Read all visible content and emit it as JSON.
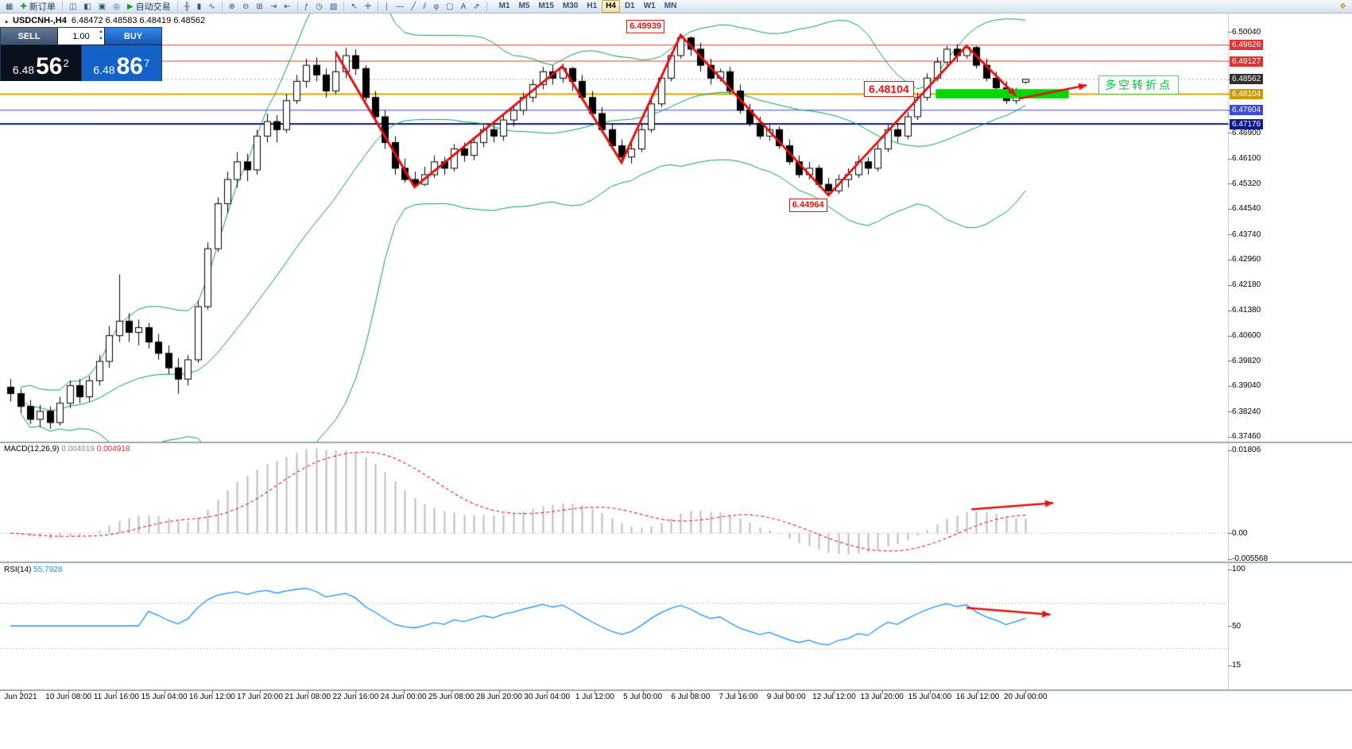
{
  "toolbar": {
    "items": [
      {
        "name": "new-chart-icon",
        "glyph": "▦"
      },
      {
        "name": "new-order-button",
        "glyph": "✚",
        "label": "新订单"
      },
      {
        "name": "sep1",
        "sep": true
      },
      {
        "name": "market-watch-icon",
        "glyph": "◫"
      },
      {
        "name": "navigator-icon",
        "glyph": "◧"
      },
      {
        "name": "terminal-icon",
        "glyph": "▣"
      },
      {
        "name": "strategy-tester-icon",
        "glyph": "◎"
      },
      {
        "name": "autotrading-button",
        "glyph": "▶",
        "label": "自动交易"
      },
      {
        "name": "sep2",
        "sep": true
      },
      {
        "name": "bar-chart-icon",
        "glyph": "╫"
      },
      {
        "name": "candlestick-chart-icon",
        "glyph": "▮"
      },
      {
        "name": "line-chart-icon",
        "glyph": "∿"
      },
      {
        "name": "sep3",
        "sep": true
      },
      {
        "name": "zoom-in-icon",
        "glyph": "⊕"
      },
      {
        "name": "zoom-out-icon",
        "glyph": "⊖"
      },
      {
        "name": "tile-windows-icon",
        "glyph": "⊞"
      },
      {
        "name": "auto-scroll-icon",
        "glyph": "⇥"
      },
      {
        "name": "chart-shift-icon",
        "glyph": "⇤"
      },
      {
        "name": "sep4",
        "sep": true
      },
      {
        "name": "indicators-icon",
        "glyph": "ƒ"
      },
      {
        "name": "periods-icon",
        "glyph": "◷"
      },
      {
        "name": "templates-icon",
        "glyph": "▧"
      },
      {
        "name": "sep5",
        "sep": true
      },
      {
        "name": "cursor-icon",
        "glyph": "↖"
      },
      {
        "name": "crosshair-icon",
        "glyph": "✛"
      },
      {
        "name": "sep6",
        "sep": true
      },
      {
        "name": "vertical-line-icon",
        "glyph": "∣"
      },
      {
        "name": "horizontal-line-icon",
        "glyph": "―"
      },
      {
        "name": "trendline-icon",
        "glyph": "╱"
      },
      {
        "name": "channel-icon",
        "glyph": "⫽"
      },
      {
        "name": "fibonacci-icon",
        "glyph": "φ"
      },
      {
        "name": "shapes-icon",
        "glyph": "▢"
      },
      {
        "name": "text-icon",
        "glyph": "A"
      },
      {
        "name": "arrows-icon",
        "glyph": "⇗"
      },
      {
        "name": "sep7",
        "sep": true
      }
    ],
    "timeframes": [
      "M1",
      "M5",
      "M15",
      "M30",
      "H1",
      "H4",
      "D1",
      "W1",
      "MN"
    ],
    "active_timeframe": "H4",
    "right_icon": {
      "name": "community-icon",
      "glyph": "❖"
    }
  },
  "symbol_bar": {
    "collapse_glyph": "▴",
    "title": "USDCNH-,H4",
    "ohlc": "6.48472 6.48583 6.48419 6.48562"
  },
  "trade_panel": {
    "sell_label": "SELL",
    "buy_label": "BUY",
    "volume": "1.00",
    "sell_price": {
      "main": "6.48",
      "big": "56",
      "sup": "2"
    },
    "buy_price": {
      "main": "6.48",
      "big": "86",
      "sup": "7"
    }
  },
  "chart_data": {
    "type": "candlestick",
    "symbol": "USDCNH-",
    "timeframe": "H4",
    "current_ohlc": {
      "open": 6.48472,
      "high": 6.48583,
      "low": 6.48419,
      "close": 6.48562
    },
    "candles": [
      [
        6.39,
        6.3925,
        6.3855,
        6.388
      ],
      [
        6.388,
        6.3895,
        6.382,
        6.384
      ],
      [
        6.384,
        6.386,
        6.3785,
        6.38
      ],
      [
        6.38,
        6.3845,
        6.3775,
        6.3825
      ],
      [
        6.3825,
        6.384,
        6.377,
        6.379
      ],
      [
        6.379,
        6.387,
        6.378,
        6.385
      ],
      [
        6.385,
        6.392,
        6.3835,
        6.3905
      ],
      [
        6.3905,
        6.3925,
        6.385,
        6.387
      ],
      [
        6.387,
        6.3935,
        6.3855,
        6.392
      ],
      [
        6.392,
        6.4,
        6.3905,
        6.398
      ],
      [
        6.398,
        6.409,
        6.396,
        6.406
      ],
      [
        6.406,
        6.425,
        6.404,
        6.4105
      ],
      [
        6.4105,
        6.413,
        6.404,
        6.407
      ],
      [
        6.407,
        6.411,
        6.403,
        6.4085
      ],
      [
        6.4085,
        6.41,
        6.402,
        6.404
      ],
      [
        6.404,
        6.4065,
        6.3985,
        6.4005
      ],
      [
        6.4005,
        6.403,
        6.394,
        6.396
      ],
      [
        6.396,
        6.399,
        6.388,
        6.3925
      ],
      [
        6.3925,
        6.4,
        6.3905,
        6.3985
      ],
      [
        6.3985,
        6.417,
        6.3975,
        6.415
      ],
      [
        6.415,
        6.435,
        6.414,
        6.433
      ],
      [
        6.433,
        6.449,
        6.432,
        6.447
      ],
      [
        6.447,
        6.457,
        6.444,
        6.4545
      ],
      [
        6.4545,
        6.463,
        6.452,
        6.46
      ],
      [
        6.46,
        6.4625,
        6.454,
        6.4575
      ],
      [
        6.4575,
        6.47,
        6.456,
        6.468
      ],
      [
        6.468,
        6.475,
        6.466,
        6.4725
      ],
      [
        6.4725,
        6.4745,
        6.466,
        6.47
      ],
      [
        6.47,
        6.481,
        6.469,
        6.479
      ],
      [
        6.479,
        6.487,
        6.478,
        6.485
      ],
      [
        6.485,
        6.492,
        6.483,
        6.49
      ],
      [
        6.49,
        6.4925,
        6.485,
        6.487
      ],
      [
        6.487,
        6.489,
        6.48,
        6.482
      ],
      [
        6.482,
        6.4945,
        6.481,
        6.488
      ],
      [
        6.488,
        6.4955,
        6.486,
        6.493
      ],
      [
        6.493,
        6.495,
        6.487,
        6.489
      ],
      [
        6.489,
        6.49,
        6.479,
        6.48
      ],
      [
        6.48,
        6.482,
        6.472,
        6.474
      ],
      [
        6.474,
        6.476,
        6.464,
        6.466
      ],
      [
        6.466,
        6.468,
        6.456,
        6.458
      ],
      [
        6.458,
        6.461,
        6.4535,
        6.4545
      ],
      [
        6.4545,
        6.457,
        6.452,
        6.453
      ],
      [
        6.453,
        6.4585,
        6.4525,
        6.456
      ],
      [
        6.456,
        6.462,
        6.455,
        6.46
      ],
      [
        6.46,
        6.4615,
        6.456,
        6.458
      ],
      [
        6.458,
        6.4655,
        6.457,
        6.464
      ],
      [
        6.464,
        6.466,
        6.46,
        6.462
      ],
      [
        6.462,
        6.4675,
        6.4605,
        6.466
      ],
      [
        6.466,
        6.4715,
        6.4645,
        6.47
      ],
      [
        6.47,
        6.472,
        6.466,
        6.468
      ],
      [
        6.468,
        6.4745,
        6.4665,
        6.473
      ],
      [
        6.473,
        6.4775,
        6.471,
        6.476
      ],
      [
        6.476,
        6.4815,
        6.4745,
        6.48
      ],
      [
        6.48,
        6.4855,
        6.4785,
        6.484
      ],
      [
        6.484,
        6.4895,
        6.4825,
        6.488
      ],
      [
        6.488,
        6.49,
        6.484,
        6.486
      ],
      [
        6.486,
        6.4905,
        6.4845,
        6.489
      ],
      [
        6.489,
        6.4895,
        6.482,
        6.485
      ],
      [
        6.485,
        6.487,
        6.479,
        6.48
      ],
      [
        6.48,
        6.482,
        6.474,
        6.475
      ],
      [
        6.475,
        6.477,
        6.469,
        6.47
      ],
      [
        6.47,
        6.472,
        6.464,
        6.465
      ],
      [
        6.465,
        6.467,
        6.46,
        6.4615
      ],
      [
        6.4615,
        6.466,
        6.4595,
        6.464
      ],
      [
        6.464,
        6.472,
        6.463,
        6.47
      ],
      [
        6.47,
        6.479,
        6.469,
        6.478
      ],
      [
        6.478,
        6.487,
        6.477,
        6.486
      ],
      [
        6.486,
        6.494,
        6.485,
        6.493
      ],
      [
        6.493,
        6.4994,
        6.492,
        6.4985
      ],
      [
        6.4985,
        6.499,
        6.493,
        6.495
      ],
      [
        6.495,
        6.497,
        6.488,
        6.49
      ],
      [
        6.49,
        6.492,
        6.484,
        6.486
      ],
      [
        6.486,
        6.489,
        6.485,
        6.488
      ],
      [
        6.488,
        6.4895,
        6.481,
        6.482
      ],
      [
        6.482,
        6.484,
        6.475,
        6.476
      ],
      [
        6.476,
        6.478,
        6.471,
        6.472
      ],
      [
        6.472,
        6.474,
        6.467,
        6.468
      ],
      [
        6.468,
        6.4715,
        6.4665,
        6.47
      ],
      [
        6.47,
        6.471,
        6.464,
        6.465
      ],
      [
        6.465,
        6.467,
        6.459,
        6.46
      ],
      [
        6.46,
        6.462,
        6.455,
        6.456
      ],
      [
        6.456,
        6.46,
        6.4545,
        6.458
      ],
      [
        6.458,
        6.459,
        6.452,
        6.453
      ],
      [
        6.453,
        6.455,
        6.4496,
        6.451
      ],
      [
        6.451,
        6.456,
        6.45,
        6.4545
      ],
      [
        6.4545,
        6.458,
        6.452,
        6.456
      ],
      [
        6.456,
        6.462,
        6.455,
        6.46
      ],
      [
        6.46,
        6.4615,
        6.456,
        6.458
      ],
      [
        6.458,
        6.4655,
        6.457,
        6.464
      ],
      [
        6.464,
        6.4715,
        6.463,
        6.47
      ],
      [
        6.47,
        6.472,
        6.466,
        6.468
      ],
      [
        6.468,
        6.4755,
        6.467,
        6.474
      ],
      [
        6.474,
        6.4815,
        6.473,
        6.48
      ],
      [
        6.48,
        6.4875,
        6.479,
        6.486
      ],
      [
        6.486,
        6.4925,
        6.485,
        6.491
      ],
      [
        6.491,
        6.496,
        6.49,
        6.495
      ],
      [
        6.495,
        6.4965,
        6.491,
        6.493
      ],
      [
        6.493,
        6.4963,
        6.492,
        6.4955
      ],
      [
        6.4955,
        6.496,
        6.489,
        6.49
      ],
      [
        6.49,
        6.492,
        6.485,
        6.486
      ],
      [
        6.486,
        6.488,
        6.482,
        6.483
      ],
      [
        6.483,
        6.485,
        6.478,
        6.479
      ],
      [
        6.479,
        6.483,
        6.478,
        6.482
      ],
      [
        6.48472,
        6.48583,
        6.48419,
        6.48562
      ]
    ],
    "time_axis": [
      "Jun 2021",
      "10 Jun 08:00",
      "11 Jun 16:00",
      "15 Jun 04:00",
      "16 Jun 12:00",
      "17 Jun 20:00",
      "21 Jun 08:00",
      "22 Jun 16:00",
      "24 Jun 00:00",
      "25 Jun 08:00",
      "28 Jun 20:00",
      "30 Jun 04:00",
      "1 Jul 12:00",
      "5 Jul 00:00",
      "6 Jul 08:00",
      "7 Jul 16:00",
      "9 Jul 00:00",
      "12 Jul 12:00",
      "13 Jul 20:00",
      "15 Jul 04:00",
      "16 Jul 12:00",
      "20 Jul 00:00"
    ],
    "price_axis": [
      {
        "t": "6.50040",
        "p": 6.5004,
        "type": "normal"
      },
      {
        "t": "6.49626",
        "p": 6.49626,
        "type": "red"
      },
      {
        "t": "6.49127",
        "p": 6.49127,
        "type": "red"
      },
      {
        "t": "6.48562",
        "p": 6.48562,
        "type": "current"
      },
      {
        "t": "6.48104",
        "p": 6.48104,
        "type": "orange"
      },
      {
        "t": "6.47604",
        "p": 6.47604,
        "type": "blue"
      },
      {
        "t": "6.47176",
        "p": 6.47176,
        "type": "navy"
      },
      {
        "t": "6.46900",
        "p": 6.469,
        "type": "normal"
      },
      {
        "t": "6.46100",
        "p": 6.461,
        "type": "normal"
      },
      {
        "t": "6.45320",
        "p": 6.4532,
        "type": "normal"
      },
      {
        "t": "6.44540",
        "p": 6.4454,
        "type": "normal"
      },
      {
        "t": "6.43740",
        "p": 6.4374,
        "type": "normal"
      },
      {
        "t": "6.42960",
        "p": 6.4296,
        "type": "normal"
      },
      {
        "t": "6.42180",
        "p": 6.4218,
        "type": "normal"
      },
      {
        "t": "6.41380",
        "p": 6.4138,
        "type": "normal"
      },
      {
        "t": "6.40600",
        "p": 6.406,
        "type": "normal"
      },
      {
        "t": "6.39820",
        "p": 6.3982,
        "type": "normal"
      },
      {
        "t": "6.39040",
        "p": 6.3904,
        "type": "normal"
      },
      {
        "t": "6.38240",
        "p": 6.3824,
        "type": "normal"
      },
      {
        "t": "6.37460",
        "p": 6.3746,
        "type": "normal"
      }
    ],
    "macd": {
      "label": "MACD(12,26,9)",
      "value1": "0.004019",
      "value2": "0.004918",
      "axis": [
        {
          "t": "0.01806",
          "v": 0.01806
        },
        {
          "t": "0.00",
          "v": 0
        },
        {
          "t": "-0.005568",
          "v": -0.005568
        }
      ]
    },
    "rsi": {
      "label": "RSI(14)",
      "value": "55.7928",
      "levels": [
        70,
        30
      ],
      "axis": [
        {
          "t": "100",
          "v": 100
        },
        {
          "t": "50",
          "v": 50
        },
        {
          "t": "15",
          "v": 15
        }
      ]
    },
    "bollinger": {
      "period": 20,
      "deviation": 2,
      "color": "#0d9b55"
    },
    "hlines": [
      {
        "price": 6.49626,
        "color": "#e03535",
        "w": 1
      },
      {
        "price": 6.49127,
        "color": "#e03535",
        "w": 1
      },
      {
        "price": 6.48104,
        "color": "#d8a400",
        "w": 2
      },
      {
        "price": 6.47604,
        "color": "#3b4bd8",
        "w": 1
      },
      {
        "price": 6.47176,
        "color": "#101a8c",
        "w": 2
      }
    ],
    "bid_line": {
      "price": 6.48562,
      "color": "#a8a8a8"
    },
    "green_zone": {
      "from_bar": 94.3,
      "to_bar": 107.8,
      "top_price": 6.4826,
      "bottom_price": 6.4797,
      "color": "#00d800"
    },
    "zigzag": {
      "color": "#e01212",
      "width": 3,
      "points": [
        [
          33,
          6.494
        ],
        [
          41,
          6.4522
        ],
        [
          56,
          6.4897
        ],
        [
          62,
          6.4598
        ],
        [
          68,
          6.4994
        ],
        [
          83,
          6.4496
        ],
        [
          97,
          6.496
        ],
        [
          102,
          6.4806
        ]
      ]
    },
    "arrows": [
      {
        "pane": "main",
        "from": [
          102.3,
          6.4796
        ],
        "to": [
          109.2,
          6.4838
        ]
      },
      {
        "pane": "macd",
        "from": [
          97.5,
          0.0052
        ],
        "to": [
          105.8,
          0.0066
        ]
      },
      {
        "pane": "rsi",
        "from": [
          97,
          66
        ],
        "to": [
          105.5,
          60
        ]
      }
    ],
    "labels": [
      {
        "text": "6.49939",
        "bar": 62.5,
        "price": 6.5042,
        "style": "red-box"
      },
      {
        "text": "6.44964",
        "bar": 79.0,
        "price": 6.4487,
        "style": "red-box"
      },
      {
        "text": "6.48104",
        "bar": 86.6,
        "price": 6.485,
        "style": "red-box-large"
      },
      {
        "text": "多空转折点",
        "bar": 110.4,
        "price": 6.4869,
        "style": "green-box"
      }
    ]
  }
}
